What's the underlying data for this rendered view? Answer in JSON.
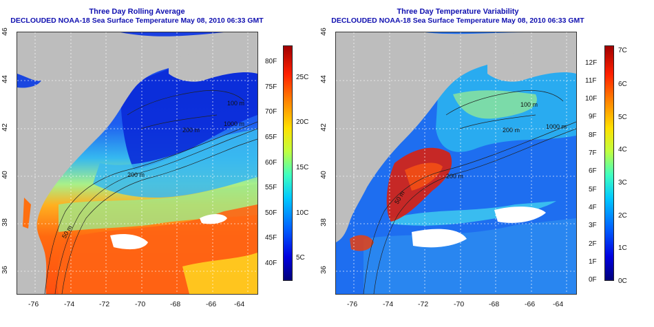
{
  "left_panel": {
    "title": "Three Day Rolling Average",
    "subtitle": "DECLOUDED NOAA-18 Sea Surface Temperature May 08, 2010 06:33 GMT",
    "colorbar_f_ticks": [
      "80F",
      "75F",
      "70F",
      "65F",
      "60F",
      "55F",
      "50F",
      "45F",
      "40F"
    ],
    "colorbar_c_ticks": [
      "25C",
      "20C",
      "15C",
      "10C",
      "5C"
    ],
    "contour_labels": [
      "50 m",
      "200 m",
      "1000 m",
      "100 m",
      "200 m"
    ]
  },
  "right_panel": {
    "title": "Three Day Temperature Variability",
    "subtitle": "DECLOUDED NOAA-18 Sea Surface Temperature May 08, 2010 06:33 GMT",
    "colorbar_f_ticks": [
      "12F",
      "11F",
      "10F",
      "9F",
      "8F",
      "7F",
      "6F",
      "5F",
      "4F",
      "3F",
      "2F",
      "1F",
      "0F"
    ],
    "colorbar_c_ticks": [
      "7C",
      "6C",
      "5C",
      "4C",
      "3C",
      "2C",
      "1C",
      "0C"
    ],
    "contour_labels": [
      "200 m",
      "50 m",
      "100 m",
      "1000 m",
      "200 m"
    ]
  },
  "axes": {
    "lon_ticks": [
      "-76",
      "-74",
      "-72",
      "-70",
      "-68",
      "-66",
      "-64"
    ],
    "lat_ticks": [
      "46",
      "44",
      "42",
      "40",
      "38",
      "36"
    ]
  },
  "colors": {
    "title": "#1010b0",
    "land": "#bdbdbd",
    "cold": "#0a2ad8",
    "warm": "#ff5a10"
  }
}
